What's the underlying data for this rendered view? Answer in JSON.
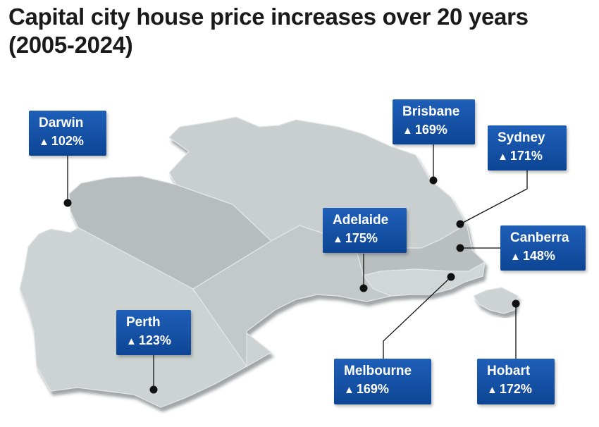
{
  "title": "Capital city house price increases over 20 years (2005-2024)",
  "icons": {
    "increase": "up-arrow-icon"
  },
  "colors": {
    "label_background": "#0d4594",
    "land": "#c9cfcf",
    "land_dark": "#b3b9ba",
    "marker": "#111111"
  },
  "cities": [
    {
      "name": "Darwin",
      "change": "102%"
    },
    {
      "name": "Brisbane",
      "change": "169%"
    },
    {
      "name": "Sydney",
      "change": "171%"
    },
    {
      "name": "Adelaide",
      "change": "175%"
    },
    {
      "name": "Canberra",
      "change": "148%"
    },
    {
      "name": "Perth",
      "change": "123%"
    },
    {
      "name": "Melbourne",
      "change": "169%"
    },
    {
      "name": "Hobart",
      "change": "172%"
    }
  ]
}
